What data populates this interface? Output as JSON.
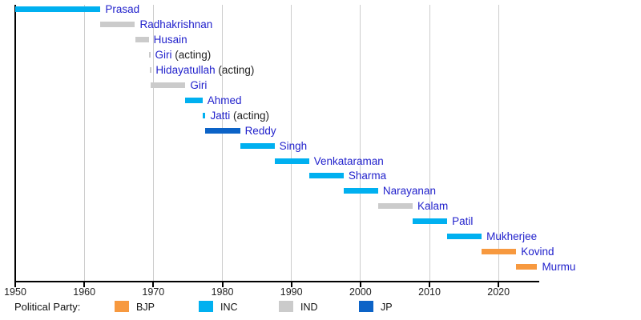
{
  "chart_data": {
    "type": "bar",
    "variant": "gantt-timeline",
    "title": "",
    "xlabel": "",
    "ylabel": "",
    "x_axis": {
      "min": 1950,
      "max": 2026,
      "ticks": [
        1950,
        1960,
        1970,
        1980,
        1990,
        2000,
        2010,
        2020
      ],
      "gridlines": true
    },
    "rows": [
      {
        "name": "Prasad",
        "suffix": "",
        "party": "INC",
        "start": 1950.05,
        "end": 1962.35
      },
      {
        "name": "Radhakrishnan",
        "suffix": "",
        "party": "IND",
        "start": 1962.35,
        "end": 1967.35
      },
      {
        "name": "Husain",
        "suffix": "",
        "party": "IND",
        "start": 1967.35,
        "end": 1969.34
      },
      {
        "name": "Giri",
        "suffix": " (acting)",
        "party": "IND",
        "start": 1969.34,
        "end": 1969.55
      },
      {
        "name": "Hidayatullah",
        "suffix": " (acting)",
        "party": "IND",
        "start": 1969.55,
        "end": 1969.65
      },
      {
        "name": "Giri",
        "suffix": "",
        "party": "IND",
        "start": 1969.65,
        "end": 1974.65
      },
      {
        "name": "Ahmed",
        "suffix": "",
        "party": "INC",
        "start": 1974.65,
        "end": 1977.12
      },
      {
        "name": "Jatti",
        "suffix": " (acting)",
        "party": "INC",
        "start": 1977.12,
        "end": 1977.56
      },
      {
        "name": "Reddy",
        "suffix": "",
        "party": "JP",
        "start": 1977.56,
        "end": 1982.56
      },
      {
        "name": "Singh",
        "suffix": "",
        "party": "INC",
        "start": 1982.56,
        "end": 1987.56
      },
      {
        "name": "Venkataraman",
        "suffix": "",
        "party": "INC",
        "start": 1987.56,
        "end": 1992.56
      },
      {
        "name": "Sharma",
        "suffix": "",
        "party": "INC",
        "start": 1992.56,
        "end": 1997.56
      },
      {
        "name": "Narayanan",
        "suffix": "",
        "party": "INC",
        "start": 1997.56,
        "end": 2002.56
      },
      {
        "name": "Kalam",
        "suffix": "",
        "party": "IND",
        "start": 2002.56,
        "end": 2007.56
      },
      {
        "name": "Patil",
        "suffix": "",
        "party": "INC",
        "start": 2007.56,
        "end": 2012.56
      },
      {
        "name": "Mukherjee",
        "suffix": "",
        "party": "INC",
        "start": 2012.56,
        "end": 2017.56
      },
      {
        "name": "Kovind",
        "suffix": "",
        "party": "BJP",
        "start": 2017.56,
        "end": 2022.56
      },
      {
        "name": "Murmu",
        "suffix": "",
        "party": "BJP",
        "start": 2022.56,
        "end": 2025.6
      }
    ],
    "party_colors": {
      "BJP": "#F7993F",
      "INC": "#00B0F0",
      "IND": "#CBCBCB",
      "JP": "#0C63C7"
    },
    "colors": {
      "name_text": "#2222CC",
      "suffix_text": "#222222",
      "axis": "#000000",
      "gridline": "#CCCCCC",
      "tick_text": "#222222",
      "legend_text": "#111111"
    },
    "legend": {
      "label": "Political Party:",
      "position": "bottom",
      "entries": [
        {
          "label": "BJP",
          "party": "BJP"
        },
        {
          "label": "INC",
          "party": "INC"
        },
        {
          "label": "IND",
          "party": "IND"
        },
        {
          "label": "JP",
          "party": "JP"
        }
      ]
    }
  }
}
